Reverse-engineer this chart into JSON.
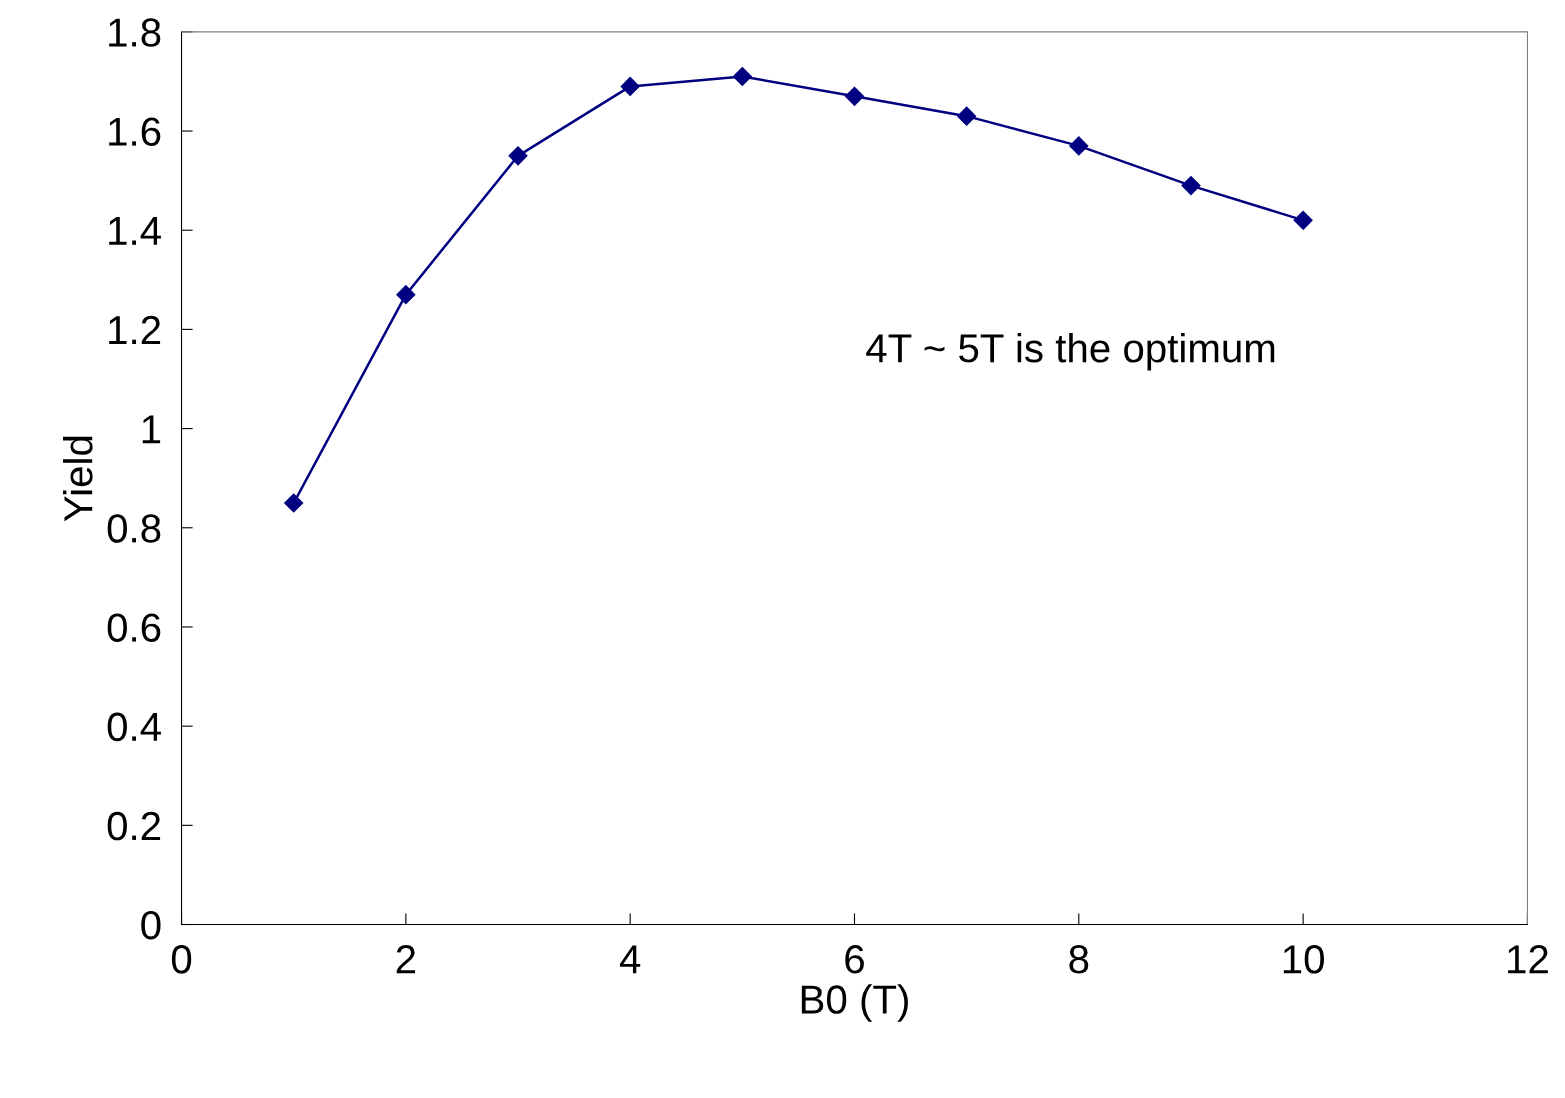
{
  "chart_data": {
    "type": "line",
    "xlabel": "B0 (T)",
    "ylabel": "Yield",
    "x": [
      1,
      2,
      3,
      4,
      5,
      6,
      7,
      8,
      9,
      10
    ],
    "series": [
      {
        "color": "#000080",
        "values": [
          0.85,
          1.27,
          1.55,
          1.69,
          1.71,
          1.67,
          1.63,
          1.57,
          1.49,
          1.42
        ]
      }
    ],
    "xlim": [
      0,
      12
    ],
    "xticks": [
      0,
      2,
      4,
      6,
      8,
      10,
      12
    ],
    "ylim": [
      0,
      1.8
    ],
    "yticks": [
      {
        "value": 0,
        "label": "0"
      },
      0.2,
      0.4,
      0.6,
      0.8,
      {
        "value": 1,
        "label": "1"
      },
      1.2,
      1.4,
      1.6,
      1.8
    ],
    "marker": "diamond",
    "line_style": "solid",
    "grid": false,
    "legend": false,
    "annotations": [
      "4T ~ 5T is the optimum"
    ]
  }
}
